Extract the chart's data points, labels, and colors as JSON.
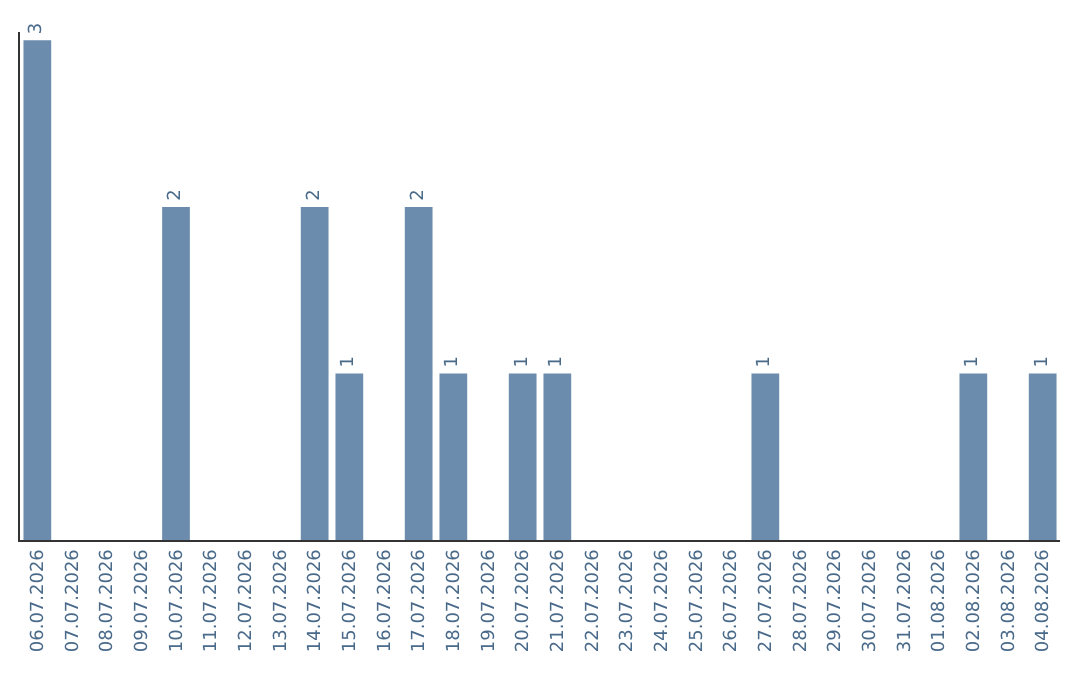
{
  "chart_data": {
    "type": "bar",
    "categories": [
      "06.07.2026",
      "07.07.2026",
      "08.07.2026",
      "09.07.2026",
      "10.07.2026",
      "11.07.2026",
      "12.07.2026",
      "13.07.2026",
      "14.07.2026",
      "15.07.2026",
      "16.07.2026",
      "17.07.2026",
      "18.07.2026",
      "19.07.2026",
      "20.07.2026",
      "21.07.2026",
      "22.07.2026",
      "23.07.2026",
      "24.07.2026",
      "25.07.2026",
      "26.07.2026",
      "27.07.2026",
      "28.07.2026",
      "29.07.2026",
      "30.07.2026",
      "31.07.2026",
      "01.08.2026",
      "02.08.2026",
      "03.08.2026",
      "04.08.2026"
    ],
    "values": [
      3,
      0,
      0,
      0,
      2,
      0,
      0,
      0,
      2,
      1,
      0,
      2,
      1,
      0,
      1,
      1,
      0,
      0,
      0,
      0,
      0,
      1,
      0,
      0,
      0,
      0,
      0,
      1,
      0,
      1
    ],
    "value_labels": [
      "3",
      null,
      null,
      null,
      "2",
      null,
      null,
      null,
      "2",
      "1",
      null,
      "2",
      "1",
      null,
      "1",
      "1",
      null,
      null,
      null,
      null,
      null,
      "1",
      null,
      null,
      null,
      null,
      null,
      "1",
      null,
      "1"
    ],
    "color": "#6b8cad",
    "ylim": [
      0,
      3.05
    ],
    "tick_labels": "x"
  }
}
